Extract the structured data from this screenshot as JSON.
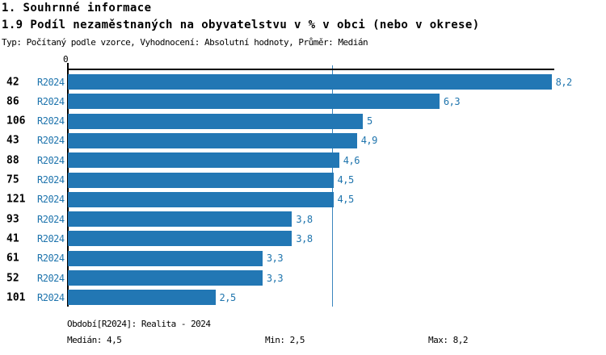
{
  "header": {
    "title1": "1. Souhrnné informace",
    "title2": "1.9 Podíl nezaměstnaných na obyvatelstvu v % v obci (nebo v okrese)",
    "subtitle": "Typ: Počítaný podle vzorce, Vyhodnocení: Absolutní hodnoty, Průměr: Medián"
  },
  "chart_data": {
    "type": "bar",
    "orientation": "horizontal",
    "axis_origin_label": "0",
    "period_label": "R2024",
    "categories": [
      "42",
      "86",
      "106",
      "43",
      "88",
      "75",
      "121",
      "93",
      "41",
      "61",
      "52",
      "101"
    ],
    "values": [
      8.2,
      6.3,
      5,
      4.9,
      4.6,
      4.5,
      4.5,
      3.8,
      3.8,
      3.3,
      3.3,
      2.5
    ],
    "value_labels": [
      "8,2",
      "6,3",
      "5",
      "4,9",
      "4,6",
      "4,5",
      "4,5",
      "3,8",
      "3,8",
      "3,3",
      "3,3",
      "2,5"
    ],
    "xlim": [
      0,
      8.2
    ],
    "median": 4.5,
    "grid": "median-line-only",
    "legend": "none",
    "bar_color": "#2277b4",
    "text_blue_color": "#1e74ad",
    "median_line_color": "#3a86be"
  },
  "footer": {
    "period_info": "Období[R2024]: Realita - 2024",
    "median": "Medián: 4,5",
    "min": "Min: 2,5",
    "max": "Max: 8,2"
  }
}
